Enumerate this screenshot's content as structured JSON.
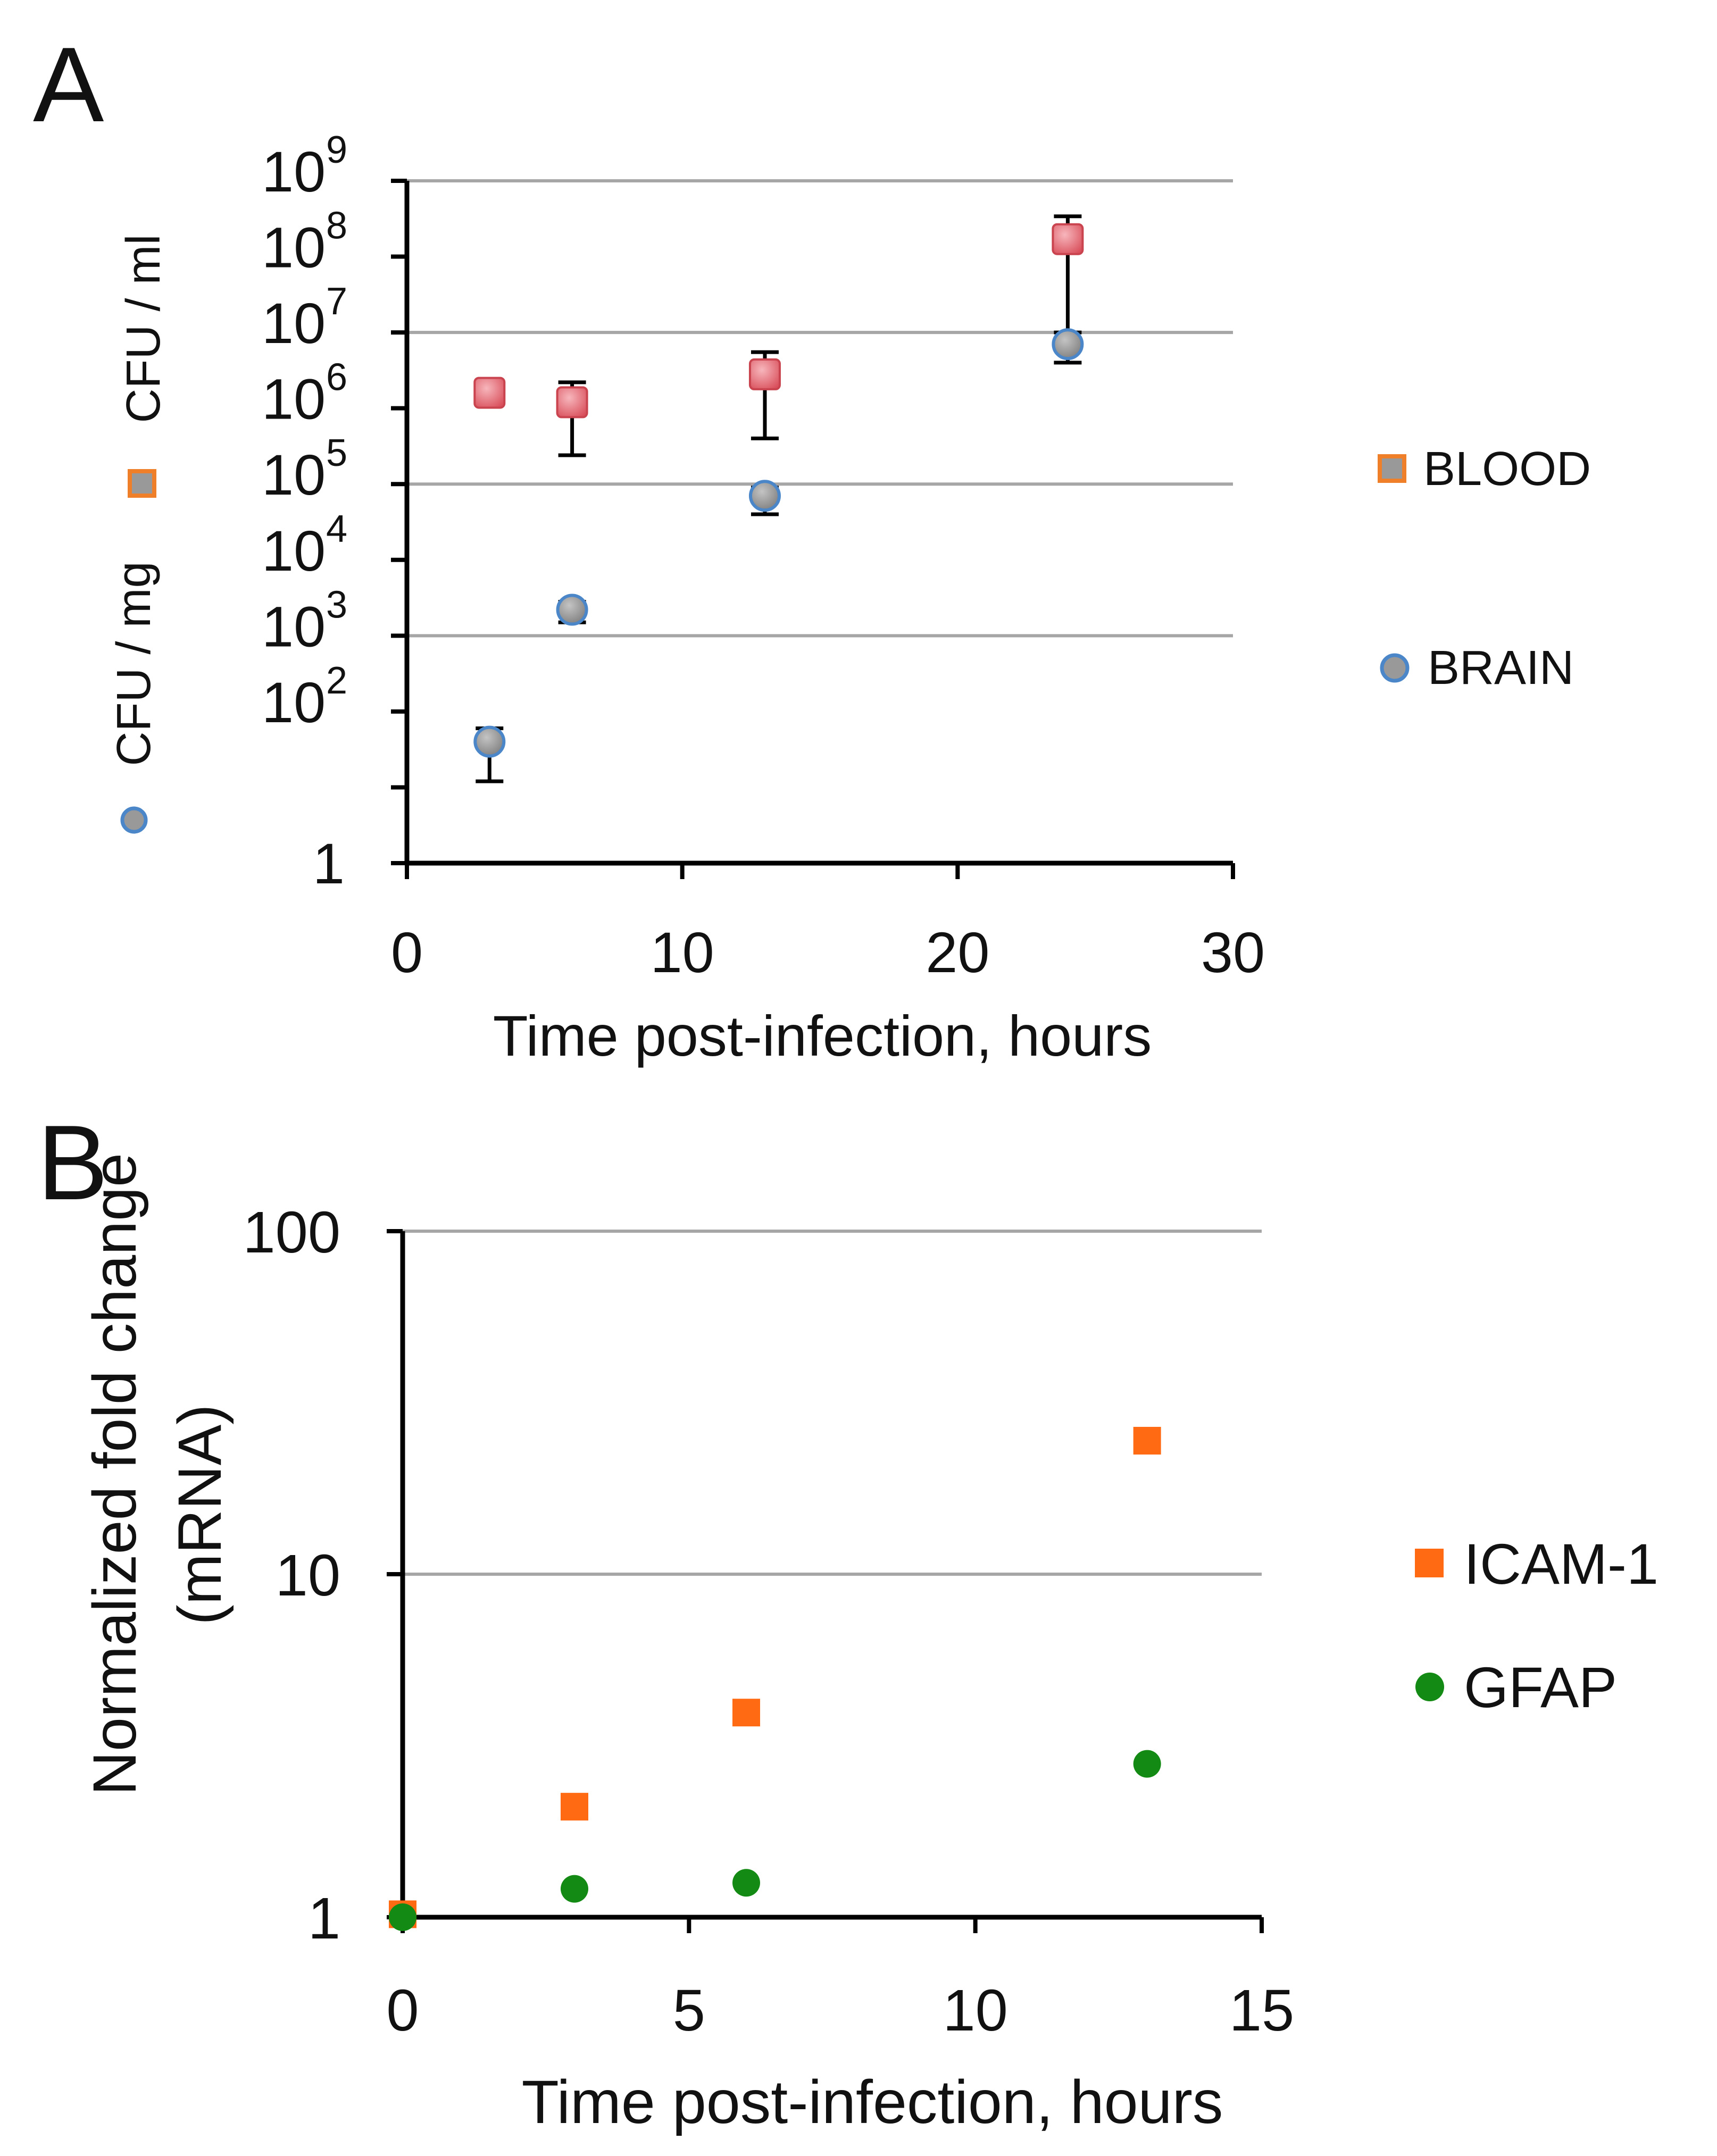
{
  "chart_data": [
    {
      "panel_label": "A",
      "type": "scatter",
      "x_range": [
        0,
        30
      ],
      "y_log_range": [
        0,
        9
      ],
      "y_scale": "log",
      "x_ticks": [
        "0",
        "10",
        "20",
        "30"
      ],
      "y_ticks": [
        {
          "base": "1",
          "exp": ""
        },
        {
          "base": "10",
          "exp": "2"
        },
        {
          "base": "10",
          "exp": "3"
        },
        {
          "base": "10",
          "exp": "4"
        },
        {
          "base": "10",
          "exp": "5"
        },
        {
          "base": "10",
          "exp": "6"
        },
        {
          "base": "10",
          "exp": "7"
        },
        {
          "base": "10",
          "exp": "8"
        },
        {
          "base": "10",
          "exp": "9"
        }
      ],
      "xlabel": "Time post-infection, hours",
      "ylabel_parts": [
        "CFU / mg",
        "CFU / ml"
      ],
      "grid": "horizontal at 10^3, 10^5, 10^7, 10^9",
      "legend_placement": "right",
      "series": [
        {
          "name": "BLOOD",
          "marker": "square",
          "color": "#e8707a",
          "legend_color": "#f07f2a",
          "points": [
            {
              "x": 3,
              "y": 1600000,
              "err_low": 1600000,
              "err_high": 1600000
            },
            {
              "x": 6,
              "y": 1200000,
              "err_low": 240000,
              "err_high": 2200000
            },
            {
              "x": 13,
              "y": 2800000,
              "err_low": 400000,
              "err_high": 5500000
            },
            {
              "x": 24,
              "y": 170000000,
              "err_low": 7000000,
              "err_high": 340000000
            }
          ]
        },
        {
          "name": "BRAIN",
          "marker": "circle",
          "color": "#999999",
          "legend_color": "#4a86c8",
          "points": [
            {
              "x": 3,
              "y": 40,
              "err_low": 12,
              "err_high": 60
            },
            {
              "x": 6,
              "y": 2200,
              "err_low": 1500,
              "err_high": 2800
            },
            {
              "x": 13,
              "y": 70000,
              "err_low": 40000,
              "err_high": 90000
            },
            {
              "x": 24,
              "y": 7000000,
              "err_low": 4000000,
              "err_high": 10000000
            }
          ]
        }
      ]
    },
    {
      "panel_label": "B",
      "type": "scatter",
      "x_range": [
        0,
        15
      ],
      "y_range": [
        1,
        100
      ],
      "y_scale": "log",
      "x_ticks": [
        "0",
        "5",
        "10",
        "15"
      ],
      "y_ticks": [
        "1",
        "10",
        "100"
      ],
      "xlabel": "Time post-infection, hours",
      "ylabel_lines": [
        "Normalized fold change",
        "(mRNA)"
      ],
      "grid": "horizontal at 10, 100",
      "legend_placement": "right",
      "series": [
        {
          "name": "ICAM-1",
          "marker": "square",
          "color": "#ff6a13",
          "points": [
            {
              "x": 0,
              "y": 1.02
            },
            {
              "x": 3,
              "y": 2.1
            },
            {
              "x": 6,
              "y": 3.95
            },
            {
              "x": 13,
              "y": 24.5
            }
          ]
        },
        {
          "name": "GFAP",
          "marker": "circle",
          "color": "#138a13",
          "points": [
            {
              "x": 0,
              "y": 1.0
            },
            {
              "x": 3,
              "y": 1.21
            },
            {
              "x": 6,
              "y": 1.26
            },
            {
              "x": 13,
              "y": 2.8
            }
          ]
        }
      ]
    }
  ]
}
